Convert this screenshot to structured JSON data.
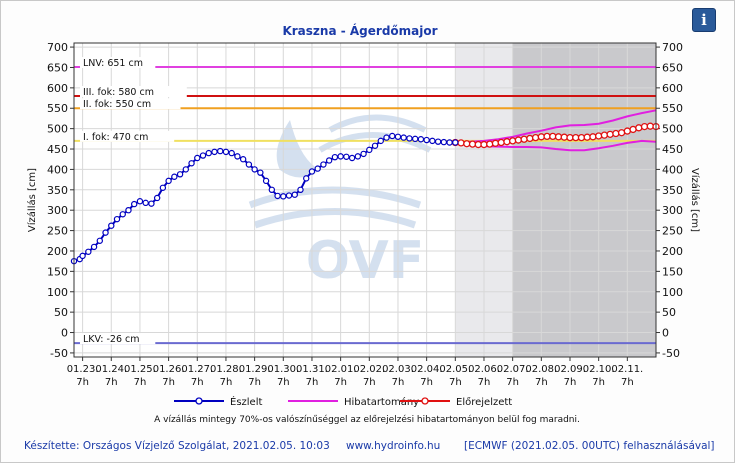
{
  "title": "Kraszna - Ágerdőmajor",
  "info_icon": "info-icon",
  "info_label": "i",
  "footer": {
    "left": "Készítette: Országos Vízjelző Szolgálat, 2021.02.05. 10:03",
    "center": "www.hydroinfo.hu",
    "right": "[ECMWF (2021.02.05. 00UTC) felhasználásával]"
  },
  "note": "A vízállás mintegy 70%-os valószínűséggel az előrejelzési hibatartományon belül fog maradni.",
  "watermark": "OVF",
  "chart_data": {
    "type": "line",
    "title": "Kraszna - Ágerdőmajor",
    "ylabel_left": "Vízállás [cm]",
    "ylabel_right": "Vízállás [cm]",
    "ylim": [
      -60,
      710
    ],
    "yticks": [
      -50,
      0,
      50,
      100,
      150,
      200,
      250,
      300,
      350,
      400,
      450,
      500,
      550,
      600,
      650,
      700
    ],
    "xlim": [
      -0.3,
      20.0
    ],
    "xtick_dates": [
      "01.23.",
      "01.24.",
      "01.25.",
      "01.26.",
      "01.27.",
      "01.28.",
      "01.29.",
      "01.30.",
      "01.31.",
      "02.01.",
      "02.02.",
      "02.03.",
      "02.04.",
      "02.05.",
      "02.06.",
      "02.07.",
      "02.08.",
      "02.09.",
      "02.10.",
      "02.11."
    ],
    "xtick_hour": "7h",
    "forecast_start": 13.0,
    "forecast_dark_start": 15.0,
    "thresholds": [
      {
        "label": "LNV: 651 cm",
        "value": 651,
        "color": "#e040e0"
      },
      {
        "label": "III. fok: 580 cm",
        "value": 580,
        "color": "#d01010"
      },
      {
        "label": "II. fok: 550 cm",
        "value": 550,
        "color": "#f0a020"
      },
      {
        "label": "I. fok: 470 cm",
        "value": 470,
        "color": "#f0e060"
      },
      {
        "label": "LKV: -26 cm",
        "value": -26,
        "color": "#6a6ad0"
      }
    ],
    "legend": [
      {
        "name": "Észlelt",
        "color": "#0000c0"
      },
      {
        "name": "Hibatartomány",
        "color": "#e020e0"
      },
      {
        "name": "Előrejelzett",
        "color": "#e01010"
      }
    ],
    "series": [
      {
        "name": "Észlelt",
        "color": "#0000c0",
        "x": [
          -0.3,
          -0.1,
          0.0,
          0.2,
          0.4,
          0.6,
          0.8,
          1.0,
          1.2,
          1.4,
          1.6,
          1.8,
          2.0,
          2.2,
          2.4,
          2.6,
          2.8,
          3.0,
          3.2,
          3.4,
          3.6,
          3.8,
          4.0,
          4.2,
          4.4,
          4.6,
          4.8,
          5.0,
          5.2,
          5.4,
          5.6,
          5.8,
          6.0,
          6.2,
          6.4,
          6.6,
          6.8,
          7.0,
          7.2,
          7.4,
          7.6,
          7.8,
          8.0,
          8.2,
          8.4,
          8.6,
          8.8,
          9.0,
          9.2,
          9.4,
          9.6,
          9.8,
          10.0,
          10.2,
          10.4,
          10.6,
          10.8,
          11.0,
          11.2,
          11.4,
          11.6,
          11.8,
          12.0,
          12.2,
          12.4,
          12.6,
          12.8,
          13.0
        ],
        "y": [
          175,
          180,
          188,
          198,
          210,
          225,
          245,
          262,
          278,
          290,
          300,
          315,
          322,
          318,
          316,
          330,
          355,
          372,
          382,
          388,
          400,
          415,
          428,
          434,
          440,
          443,
          445,
          443,
          440,
          432,
          425,
          412,
          400,
          392,
          372,
          350,
          335,
          334,
          336,
          338,
          350,
          378,
          395,
          402,
          412,
          422,
          430,
          432,
          431,
          428,
          432,
          438,
          448,
          458,
          470,
          478,
          482,
          480,
          478,
          476,
          475,
          474,
          472,
          470,
          468,
          467,
          466,
          466
        ]
      },
      {
        "name": "Hibatartomány felső",
        "color": "#e020e0",
        "x": [
          13.0,
          13.5,
          14.0,
          14.5,
          15.0,
          15.5,
          16.0,
          16.5,
          17.0,
          17.5,
          18.0,
          18.5,
          19.0,
          19.5,
          20.0
        ],
        "y": [
          466,
          468,
          470,
          474,
          480,
          488,
          495,
          503,
          508,
          509,
          512,
          520,
          530,
          538,
          545
        ]
      },
      {
        "name": "Hibatartomány alsó",
        "color": "#e020e0",
        "x": [
          13.0,
          13.5,
          14.0,
          14.5,
          15.0,
          15.5,
          16.0,
          16.5,
          17.0,
          17.5,
          18.0,
          18.5,
          19.0,
          19.5,
          20.0
        ],
        "y": [
          466,
          460,
          457,
          456,
          455,
          455,
          454,
          450,
          447,
          447,
          452,
          458,
          465,
          470,
          468
        ]
      },
      {
        "name": "Előrejelzett",
        "color": "#e01010",
        "x": [
          13.0,
          13.2,
          13.4,
          13.6,
          13.8,
          14.0,
          14.2,
          14.4,
          14.6,
          14.8,
          15.0,
          15.2,
          15.4,
          15.6,
          15.8,
          16.0,
          16.2,
          16.4,
          16.6,
          16.8,
          17.0,
          17.2,
          17.4,
          17.6,
          17.8,
          18.0,
          18.2,
          18.4,
          18.6,
          18.8,
          19.0,
          19.2,
          19.4,
          19.6,
          19.8,
          20.0
        ],
        "y": [
          466,
          465,
          463,
          462,
          461,
          461,
          462,
          464,
          466,
          468,
          470,
          472,
          474,
          476,
          478,
          480,
          481,
          481,
          480,
          479,
          478,
          478,
          478,
          479,
          480,
          482,
          484,
          486,
          488,
          490,
          494,
          498,
          502,
          505,
          506,
          505
        ]
      }
    ]
  }
}
